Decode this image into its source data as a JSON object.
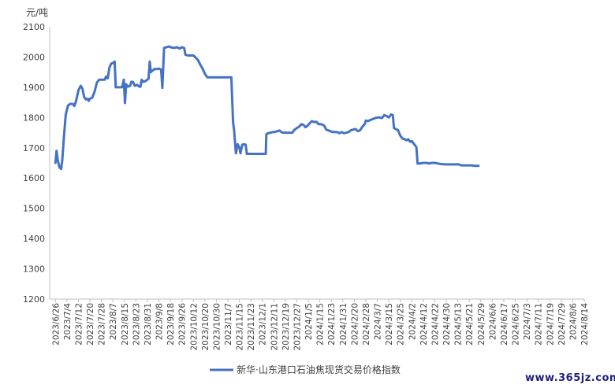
{
  "chart_data": {
    "type": "line",
    "unit_label": "元/吨",
    "ylim": [
      1200,
      2100
    ],
    "yticks": [
      1200,
      1300,
      1400,
      1500,
      1600,
      1700,
      1800,
      1900,
      2000,
      2100
    ],
    "x_tick_labels": [
      "2023/6/26",
      "2023/7/4",
      "2023/7/12",
      "2023/7/20",
      "2023/7/28",
      "2023/8/7",
      "2023/8/15",
      "2023/8/23",
      "2023/8/31",
      "2023/9/8",
      "2023/9/18",
      "2023/9/26",
      "2023/10/12",
      "2023/10/20",
      "2023/10/30",
      "2023/11/7",
      "2023/11/15",
      "2023/11/23",
      "2023/12/1",
      "2023/12/11",
      "2023/12/19",
      "2023/12/27",
      "2024/1/5",
      "2024/1/15",
      "2024/1/23",
      "2024/1/31",
      "2024/2/20",
      "2024/2/28",
      "2024/3/7",
      "2024/3/15",
      "2024/3/25",
      "2024/4/2",
      "2024/4/12",
      "2024/4/22",
      "2024/4/30",
      "2024/5/13",
      "2024/5/21",
      "2024/5/29",
      "2024/6/6",
      "2024/6/17",
      "2024/6/25",
      "2024/7/3",
      "2024/7/11",
      "2024/7/19",
      "2024/7/29",
      "2024/8/6",
      "2024/8/14"
    ],
    "grid": false,
    "legend_position": "bottom",
    "series": [
      {
        "name": "新华·山东港口石油焦现货交易价格指数",
        "color": "#4472C4",
        "points": [
          [
            0,
            1650
          ],
          [
            0.1,
            1690
          ],
          [
            0.2,
            1660
          ],
          [
            0.35,
            1635
          ],
          [
            0.5,
            1630
          ],
          [
            0.6,
            1660
          ],
          [
            0.75,
            1740
          ],
          [
            0.9,
            1810
          ],
          [
            1.1,
            1840
          ],
          [
            1.3,
            1845
          ],
          [
            1.5,
            1845
          ],
          [
            1.65,
            1838
          ],
          [
            1.8,
            1855
          ],
          [
            2.0,
            1890
          ],
          [
            2.2,
            1905
          ],
          [
            2.35,
            1895
          ],
          [
            2.5,
            1868
          ],
          [
            2.65,
            1860
          ],
          [
            2.8,
            1862
          ],
          [
            2.9,
            1855
          ],
          [
            3.0,
            1862
          ],
          [
            3.2,
            1865
          ],
          [
            3.4,
            1885
          ],
          [
            3.6,
            1915
          ],
          [
            3.8,
            1925
          ],
          [
            4.0,
            1925
          ],
          [
            4.2,
            1925
          ],
          [
            4.3,
            1925
          ],
          [
            4.4,
            1935
          ],
          [
            4.55,
            1930
          ],
          [
            4.7,
            1965
          ],
          [
            4.85,
            1978
          ],
          [
            5.0,
            1980
          ],
          [
            5.15,
            1985
          ],
          [
            5.25,
            1900
          ],
          [
            5.4,
            1900
          ],
          [
            5.6,
            1900
          ],
          [
            5.8,
            1900
          ],
          [
            5.95,
            1925
          ],
          [
            6.05,
            1848
          ],
          [
            6.15,
            1910
          ],
          [
            6.3,
            1902
          ],
          [
            6.5,
            1905
          ],
          [
            6.6,
            1918
          ],
          [
            6.75,
            1918
          ],
          [
            6.9,
            1905
          ],
          [
            7.1,
            1908
          ],
          [
            7.3,
            1902
          ],
          [
            7.4,
            1902
          ],
          [
            7.5,
            1925
          ],
          [
            7.65,
            1918
          ],
          [
            7.8,
            1920
          ],
          [
            8.0,
            1925
          ],
          [
            8.1,
            1928
          ],
          [
            8.2,
            1985
          ],
          [
            8.3,
            1950
          ],
          [
            8.45,
            1955
          ],
          [
            8.6,
            1960
          ],
          [
            8.8,
            1960
          ],
          [
            9.0,
            1962
          ],
          [
            9.2,
            1958
          ],
          [
            9.3,
            1898
          ],
          [
            9.45,
            2030
          ],
          [
            9.65,
            2032
          ],
          [
            9.85,
            2035
          ],
          [
            10.05,
            2032
          ],
          [
            10.3,
            2030
          ],
          [
            10.6,
            2032
          ],
          [
            10.8,
            2028
          ],
          [
            11.0,
            2032
          ],
          [
            11.2,
            2030
          ],
          [
            11.3,
            2008
          ],
          [
            11.5,
            2005
          ],
          [
            11.8,
            2005
          ],
          [
            12.0,
            2005
          ],
          [
            12.2,
            1998
          ],
          [
            12.4,
            1990
          ],
          [
            12.6,
            1975
          ],
          [
            12.8,
            1962
          ],
          [
            13.0,
            1945
          ],
          [
            13.2,
            1933
          ],
          [
            13.4,
            1933
          ],
          [
            13.7,
            1933
          ],
          [
            14.0,
            1933
          ],
          [
            14.3,
            1933
          ],
          [
            14.6,
            1933
          ],
          [
            14.9,
            1933
          ],
          [
            15.1,
            1933
          ],
          [
            15.3,
            1933
          ],
          [
            15.45,
            1785
          ],
          [
            15.55,
            1755
          ],
          [
            15.7,
            1682
          ],
          [
            15.85,
            1712
          ],
          [
            16.0,
            1700
          ],
          [
            16.1,
            1682
          ],
          [
            16.25,
            1710
          ],
          [
            16.4,
            1712
          ],
          [
            16.55,
            1710
          ],
          [
            16.65,
            1680
          ],
          [
            17.0,
            1680
          ],
          [
            17.4,
            1680
          ],
          [
            17.8,
            1680
          ],
          [
            18.1,
            1680
          ],
          [
            18.3,
            1680
          ],
          [
            18.35,
            1745
          ],
          [
            18.5,
            1748
          ],
          [
            18.7,
            1750
          ],
          [
            18.9,
            1752
          ],
          [
            19.1,
            1752
          ],
          [
            19.3,
            1755
          ],
          [
            19.5,
            1757
          ],
          [
            19.65,
            1752
          ],
          [
            19.8,
            1750
          ],
          [
            20.0,
            1750
          ],
          [
            20.3,
            1750
          ],
          [
            20.6,
            1750
          ],
          [
            20.8,
            1760
          ],
          [
            21.0,
            1765
          ],
          [
            21.2,
            1770
          ],
          [
            21.4,
            1778
          ],
          [
            21.6,
            1775
          ],
          [
            21.75,
            1768
          ],
          [
            21.9,
            1772
          ],
          [
            22.1,
            1780
          ],
          [
            22.3,
            1788
          ],
          [
            22.5,
            1785
          ],
          [
            22.7,
            1786
          ],
          [
            22.9,
            1778
          ],
          [
            23.1,
            1778
          ],
          [
            23.3,
            1775
          ],
          [
            23.4,
            1772
          ],
          [
            23.55,
            1760
          ],
          [
            23.7,
            1758
          ],
          [
            23.9,
            1755
          ],
          [
            24.1,
            1752
          ],
          [
            24.3,
            1752
          ],
          [
            24.5,
            1752
          ],
          [
            24.7,
            1748
          ],
          [
            24.9,
            1752
          ],
          [
            25.1,
            1748
          ],
          [
            25.3,
            1750
          ],
          [
            25.5,
            1752
          ],
          [
            25.7,
            1758
          ],
          [
            25.9,
            1760
          ],
          [
            26.1,
            1762
          ],
          [
            26.3,
            1755
          ],
          [
            26.5,
            1758
          ],
          [
            26.7,
            1770
          ],
          [
            26.9,
            1778
          ],
          [
            27.0,
            1790
          ],
          [
            27.2,
            1788
          ],
          [
            27.4,
            1792
          ],
          [
            27.6,
            1795
          ],
          [
            27.8,
            1798
          ],
          [
            28.0,
            1800
          ],
          [
            28.2,
            1800
          ],
          [
            28.4,
            1798
          ],
          [
            28.6,
            1808
          ],
          [
            28.8,
            1805
          ],
          [
            29.0,
            1800
          ],
          [
            29.2,
            1810
          ],
          [
            29.35,
            1808
          ],
          [
            29.45,
            1765
          ],
          [
            29.6,
            1762
          ],
          [
            29.8,
            1758
          ],
          [
            30.0,
            1740
          ],
          [
            30.2,
            1730
          ],
          [
            30.4,
            1728
          ],
          [
            30.55,
            1725
          ],
          [
            30.7,
            1728
          ],
          [
            30.85,
            1720
          ],
          [
            31.0,
            1722
          ],
          [
            31.2,
            1712
          ],
          [
            31.4,
            1702
          ],
          [
            31.5,
            1648
          ],
          [
            31.7,
            1648
          ],
          [
            32.0,
            1650
          ],
          [
            32.3,
            1650
          ],
          [
            32.5,
            1648
          ],
          [
            32.7,
            1650
          ],
          [
            33.0,
            1650
          ],
          [
            33.3,
            1648
          ],
          [
            33.6,
            1646
          ],
          [
            33.9,
            1645
          ],
          [
            34.2,
            1645
          ],
          [
            34.5,
            1645
          ],
          [
            34.8,
            1645
          ],
          [
            35.1,
            1645
          ],
          [
            35.3,
            1642
          ],
          [
            35.6,
            1642
          ],
          [
            35.9,
            1642
          ],
          [
            36.2,
            1642
          ],
          [
            36.5,
            1640
          ],
          [
            36.7,
            1640
          ],
          [
            36.8,
            1640
          ]
        ]
      }
    ]
  },
  "watermark": "www.365jz.com"
}
